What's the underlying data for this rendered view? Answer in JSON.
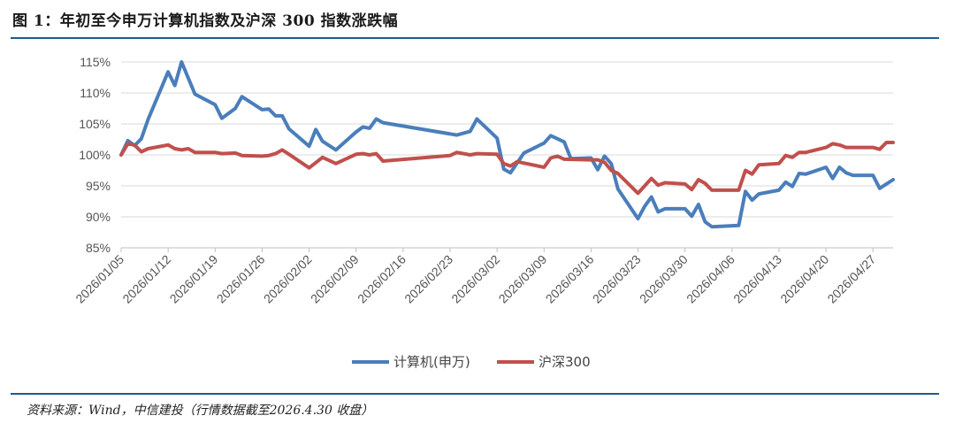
{
  "header": {
    "title": "图 1：年初至今申万计算机指数及沪深 300 指数涨跌幅"
  },
  "footer": {
    "source": "资料来源：Wind，中信建投（行情数据截至2026.4.30 收盘）"
  },
  "chart_data": {
    "type": "line",
    "title": "图 1：年初至今申万计算机指数及沪深 300 指数涨跌幅",
    "xlabel": "",
    "ylabel": "",
    "ylim": [
      85,
      115
    ],
    "yticks": [
      "85%",
      "90%",
      "95%",
      "100%",
      "105%",
      "110%",
      "115%"
    ],
    "ytick_values": [
      85,
      90,
      95,
      100,
      105,
      110,
      115
    ],
    "xticks": [
      "2026/01/05",
      "2026/01/12",
      "2026/01/19",
      "2026/01/26",
      "2026/02/02",
      "2026/02/09",
      "2026/02/16",
      "2026/02/23",
      "2026/03/02",
      "2026/03/09",
      "2026/03/16",
      "2026/03/23",
      "2026/03/30",
      "2026/04/06",
      "2026/04/13",
      "2026/04/20",
      "2026/04/27"
    ],
    "x_range": [
      "2026-01-05",
      "2026-04-30"
    ],
    "grid": "horizontal",
    "legend_position": "bottom",
    "series": [
      {
        "name": "计算机(申万)",
        "color": "#4a7ebb",
        "points": [
          [
            "2026-01-05",
            100.0
          ],
          [
            "2026-01-06",
            102.3
          ],
          [
            "2026-01-07",
            101.5
          ],
          [
            "2026-01-08",
            102.6
          ],
          [
            "2026-01-09",
            105.7
          ],
          [
            "2026-01-12",
            113.4
          ],
          [
            "2026-01-13",
            111.2
          ],
          [
            "2026-01-14",
            115.0
          ],
          [
            "2026-01-16",
            109.8
          ],
          [
            "2026-01-19",
            108.1
          ],
          [
            "2026-01-20",
            105.9
          ],
          [
            "2026-01-21",
            106.7
          ],
          [
            "2026-01-22",
            107.5
          ],
          [
            "2026-01-23",
            109.4
          ],
          [
            "2026-01-26",
            107.3
          ],
          [
            "2026-01-27",
            107.4
          ],
          [
            "2026-01-28",
            106.3
          ],
          [
            "2026-01-29",
            106.3
          ],
          [
            "2026-01-30",
            104.2
          ],
          [
            "2026-02-02",
            101.4
          ],
          [
            "2026-02-03",
            104.1
          ],
          [
            "2026-02-04",
            102.2
          ],
          [
            "2026-02-06",
            100.8
          ],
          [
            "2026-02-09",
            103.7
          ],
          [
            "2026-02-10",
            104.5
          ],
          [
            "2026-02-11",
            104.3
          ],
          [
            "2026-02-12",
            105.8
          ],
          [
            "2026-02-13",
            105.2
          ],
          [
            "2026-02-24",
            103.2
          ],
          [
            "2026-02-26",
            103.8
          ],
          [
            "2026-02-27",
            105.8
          ],
          [
            "2026-03-02",
            102.7
          ],
          [
            "2026-03-03",
            97.7
          ],
          [
            "2026-03-04",
            97.1
          ],
          [
            "2026-03-06",
            100.3
          ],
          [
            "2026-03-09",
            101.9
          ],
          [
            "2026-03-10",
            103.1
          ],
          [
            "2026-03-12",
            102.1
          ],
          [
            "2026-03-13",
            99.4
          ],
          [
            "2026-03-16",
            99.5
          ],
          [
            "2026-03-17",
            97.6
          ],
          [
            "2026-03-18",
            99.8
          ],
          [
            "2026-03-19",
            98.6
          ],
          [
            "2026-03-20",
            94.5
          ],
          [
            "2026-03-23",
            89.7
          ],
          [
            "2026-03-24",
            91.7
          ],
          [
            "2026-03-25",
            93.2
          ],
          [
            "2026-03-26",
            90.8
          ],
          [
            "2026-03-27",
            91.3
          ],
          [
            "2026-03-30",
            91.3
          ],
          [
            "2026-03-31",
            90.1
          ],
          [
            "2026-04-01",
            92.0
          ],
          [
            "2026-04-02",
            89.2
          ],
          [
            "2026-04-03",
            88.4
          ],
          [
            "2026-04-07",
            88.6
          ],
          [
            "2026-04-08",
            94.1
          ],
          [
            "2026-04-09",
            92.7
          ],
          [
            "2026-04-10",
            93.7
          ],
          [
            "2026-04-13",
            94.3
          ],
          [
            "2026-04-14",
            95.6
          ],
          [
            "2026-04-15",
            94.9
          ],
          [
            "2026-04-16",
            97.0
          ],
          [
            "2026-04-17",
            96.9
          ],
          [
            "2026-04-20",
            98.0
          ],
          [
            "2026-04-21",
            96.2
          ],
          [
            "2026-04-22",
            98.0
          ],
          [
            "2026-04-23",
            97.1
          ],
          [
            "2026-04-24",
            96.7
          ],
          [
            "2026-04-27",
            96.7
          ],
          [
            "2026-04-28",
            94.6
          ],
          [
            "2026-04-29",
            95.3
          ],
          [
            "2026-04-30",
            96.0
          ]
        ]
      },
      {
        "name": "沪深300",
        "color": "#c0504d",
        "points": [
          [
            "2026-01-05",
            100.0
          ],
          [
            "2026-01-06",
            101.8
          ],
          [
            "2026-01-07",
            101.6
          ],
          [
            "2026-01-08",
            100.5
          ],
          [
            "2026-01-09",
            101.0
          ],
          [
            "2026-01-12",
            101.6
          ],
          [
            "2026-01-13",
            101.0
          ],
          [
            "2026-01-14",
            100.8
          ],
          [
            "2026-01-15",
            101.0
          ],
          [
            "2026-01-16",
            100.4
          ],
          [
            "2026-01-19",
            100.4
          ],
          [
            "2026-01-20",
            100.2
          ],
          [
            "2026-01-22",
            100.3
          ],
          [
            "2026-01-23",
            99.9
          ],
          [
            "2026-01-26",
            99.8
          ],
          [
            "2026-01-27",
            99.9
          ],
          [
            "2026-01-28",
            100.2
          ],
          [
            "2026-01-29",
            100.8
          ],
          [
            "2026-01-30",
            100.1
          ],
          [
            "2026-02-02",
            97.9
          ],
          [
            "2026-02-04",
            99.6
          ],
          [
            "2026-02-06",
            98.6
          ],
          [
            "2026-02-09",
            100.1
          ],
          [
            "2026-02-10",
            100.2
          ],
          [
            "2026-02-11",
            100.0
          ],
          [
            "2026-02-12",
            100.2
          ],
          [
            "2026-02-13",
            99.0
          ],
          [
            "2026-02-23",
            99.9
          ],
          [
            "2026-02-24",
            100.4
          ],
          [
            "2026-02-26",
            100.0
          ],
          [
            "2026-02-27",
            100.2
          ],
          [
            "2026-03-02",
            100.1
          ],
          [
            "2026-03-03",
            98.6
          ],
          [
            "2026-03-04",
            98.2
          ],
          [
            "2026-03-05",
            98.9
          ],
          [
            "2026-03-09",
            98.0
          ],
          [
            "2026-03-10",
            99.5
          ],
          [
            "2026-03-11",
            99.8
          ],
          [
            "2026-03-12",
            99.3
          ],
          [
            "2026-03-16",
            99.2
          ],
          [
            "2026-03-17",
            99.2
          ],
          [
            "2026-03-18",
            98.8
          ],
          [
            "2026-03-19",
            97.5
          ],
          [
            "2026-03-20",
            97.0
          ],
          [
            "2026-03-23",
            93.8
          ],
          [
            "2026-03-25",
            96.2
          ],
          [
            "2026-03-26",
            95.1
          ],
          [
            "2026-03-27",
            95.5
          ],
          [
            "2026-03-30",
            95.3
          ],
          [
            "2026-03-31",
            94.4
          ],
          [
            "2026-04-01",
            96.0
          ],
          [
            "2026-04-02",
            95.4
          ],
          [
            "2026-04-03",
            94.3
          ],
          [
            "2026-04-07",
            94.3
          ],
          [
            "2026-04-08",
            97.5
          ],
          [
            "2026-04-09",
            96.9
          ],
          [
            "2026-04-10",
            98.4
          ],
          [
            "2026-04-13",
            98.6
          ],
          [
            "2026-04-14",
            99.9
          ],
          [
            "2026-04-15",
            99.6
          ],
          [
            "2026-04-16",
            100.4
          ],
          [
            "2026-04-17",
            100.4
          ],
          [
            "2026-04-20",
            101.2
          ],
          [
            "2026-04-21",
            101.8
          ],
          [
            "2026-04-22",
            101.6
          ],
          [
            "2026-04-23",
            101.2
          ],
          [
            "2026-04-24",
            101.2
          ],
          [
            "2026-04-27",
            101.2
          ],
          [
            "2026-04-28",
            100.9
          ],
          [
            "2026-04-29",
            102.0
          ],
          [
            "2026-04-30",
            102.0
          ]
        ]
      }
    ]
  }
}
